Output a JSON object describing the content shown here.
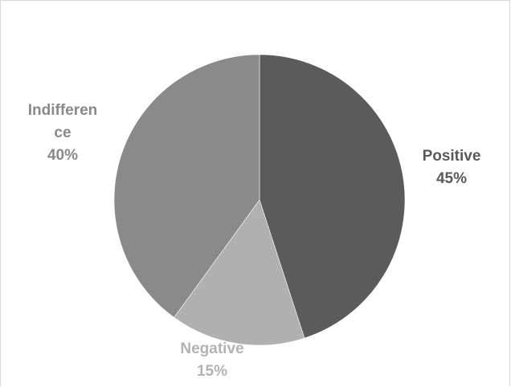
{
  "chart_data": {
    "type": "pie",
    "title": "",
    "legend": "none",
    "start_angle_deg": 0,
    "direction": "clockwise",
    "slices": [
      {
        "category": "Positive",
        "value": 45,
        "percent_label": "45%",
        "label_lines": [
          "Positive"
        ],
        "color": "#5b5b5b",
        "label_color": "#595959"
      },
      {
        "category": "Negative",
        "value": 15,
        "percent_label": "15%",
        "label_lines": [
          "Negative"
        ],
        "color": "#b0b0b0",
        "label_color": "#b3b3b3"
      },
      {
        "category": "Indifference",
        "value": 40,
        "percent_label": "40%",
        "label_lines": [
          "Indifferen",
          "ce"
        ],
        "color": "#8a8a8a",
        "label_color": "#898989"
      }
    ]
  }
}
